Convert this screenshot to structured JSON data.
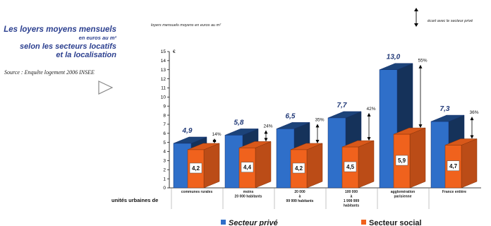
{
  "left_panel": {
    "title_line1": "Les loyers moyens mensuels",
    "title_line2": "en euros au m²",
    "title_line3": "selon les secteurs locatifs",
    "title_line4": "et la localisation",
    "source": "Source : Enquête logement 2006 INSEE",
    "next_icon": "play-triangle-icon"
  },
  "chart_data": {
    "type": "bar",
    "title": "loyers mensuels  moyens en  euros  au m²",
    "ylabel": "€",
    "xlabel": "unités urbaines de",
    "ylim": [
      0,
      15
    ],
    "yticks": [
      0,
      1,
      2,
      3,
      4,
      5,
      6,
      7,
      8,
      9,
      10,
      11,
      12,
      13,
      14,
      15
    ],
    "categories": [
      [
        "communes rurales"
      ],
      [
        "moins",
        "20 000 habitants"
      ],
      [
        "20 000",
        "à",
        "99 999 habitants"
      ],
      [
        "100 000",
        "à",
        "1 999 999",
        "habitants"
      ],
      [
        "agglomération",
        "parisienne"
      ],
      [
        "France entière"
      ]
    ],
    "series": [
      {
        "name": "Secteur privé",
        "color": "#2f6fc9",
        "values": [
          4.9,
          5.8,
          6.5,
          7.7,
          13.0,
          7.3
        ],
        "labels": [
          "4,9",
          "5,8",
          "6,5",
          "7,7",
          "13,0",
          "7,3"
        ]
      },
      {
        "name": "Secteur social",
        "color": "#f0621d",
        "values": [
          4.2,
          4.4,
          4.2,
          4.5,
          5.9,
          4.7
        ],
        "labels": [
          "4,2",
          "4,4",
          "4,2",
          "4,5",
          "5,9",
          "4,7"
        ]
      }
    ],
    "gaps": [
      "14%",
      "24%",
      "35%",
      "42%",
      "55%",
      "36%"
    ],
    "gap_legend": "écart avec le secteur privé",
    "grid": false
  }
}
